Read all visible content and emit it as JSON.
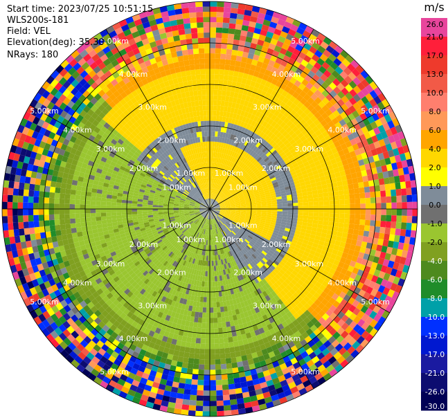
{
  "header": {
    "start_time": "Start time: 2023/07/25 10:51:15",
    "instrument": "WLS200s-181",
    "field": "Field: VEL",
    "elevation": "Elevation(deg): 35.30",
    "nrays": "NRays: 180"
  },
  "chart_data": {
    "type": "heatmap",
    "projection": "polar",
    "field": "VEL",
    "unit": "m/s",
    "n_rays": 180,
    "range_rings_km": [
      1.0,
      2.0,
      3.0,
      4.0,
      5.0
    ],
    "range_labels": [
      "1.00km",
      "2.00km",
      "3.00km",
      "4.00km",
      "5.00km"
    ],
    "max_range_km": 5.0,
    "spoke_angles_deg": [
      0,
      30,
      60,
      90,
      120,
      150,
      180,
      210,
      240,
      270,
      300,
      330
    ],
    "colorbar": {
      "label": "m/s",
      "ticks": [
        "26.0",
        "21.0",
        "17.0",
        "13.0",
        "10.0",
        "8.0",
        "6.0",
        "4.0",
        "2.0",
        "1.0",
        "0.0",
        "-1.0",
        "-2.0",
        "-4.0",
        "-6.0",
        "-8.0",
        "-10.0",
        "-13.0",
        "-17.0",
        "-21.0",
        "-26.0",
        "-30.0"
      ],
      "colors": [
        "#e8459c",
        "#ff1f3a",
        "#ee3a2c",
        "#f25a47",
        "#ff7f6e",
        "#ff9959",
        "#ffa500",
        "#ffd700",
        "#ffff00",
        "#7f8c99",
        "#707070",
        "#9ac630",
        "#80a020",
        "#4e8a1e",
        "#1f8c2a",
        "#00a0a8",
        "#0030ff",
        "#0018d0",
        "#1a1aa0",
        "#0c0c70",
        "#000055"
      ]
    },
    "radial_profile_kmps": [
      {
        "r_km": 0.25,
        "value": 1.0
      },
      {
        "r_km": 0.75,
        "value": 0.0
      },
      {
        "r_km": 1.5,
        "value": 0.0
      },
      {
        "r_km": 2.25,
        "value": 2.0
      },
      {
        "r_km": 3.0,
        "value": 4.0
      },
      {
        "r_km": 4.0,
        "value": 8.0
      },
      {
        "r_km": 4.75,
        "value": 17.0
      }
    ]
  }
}
